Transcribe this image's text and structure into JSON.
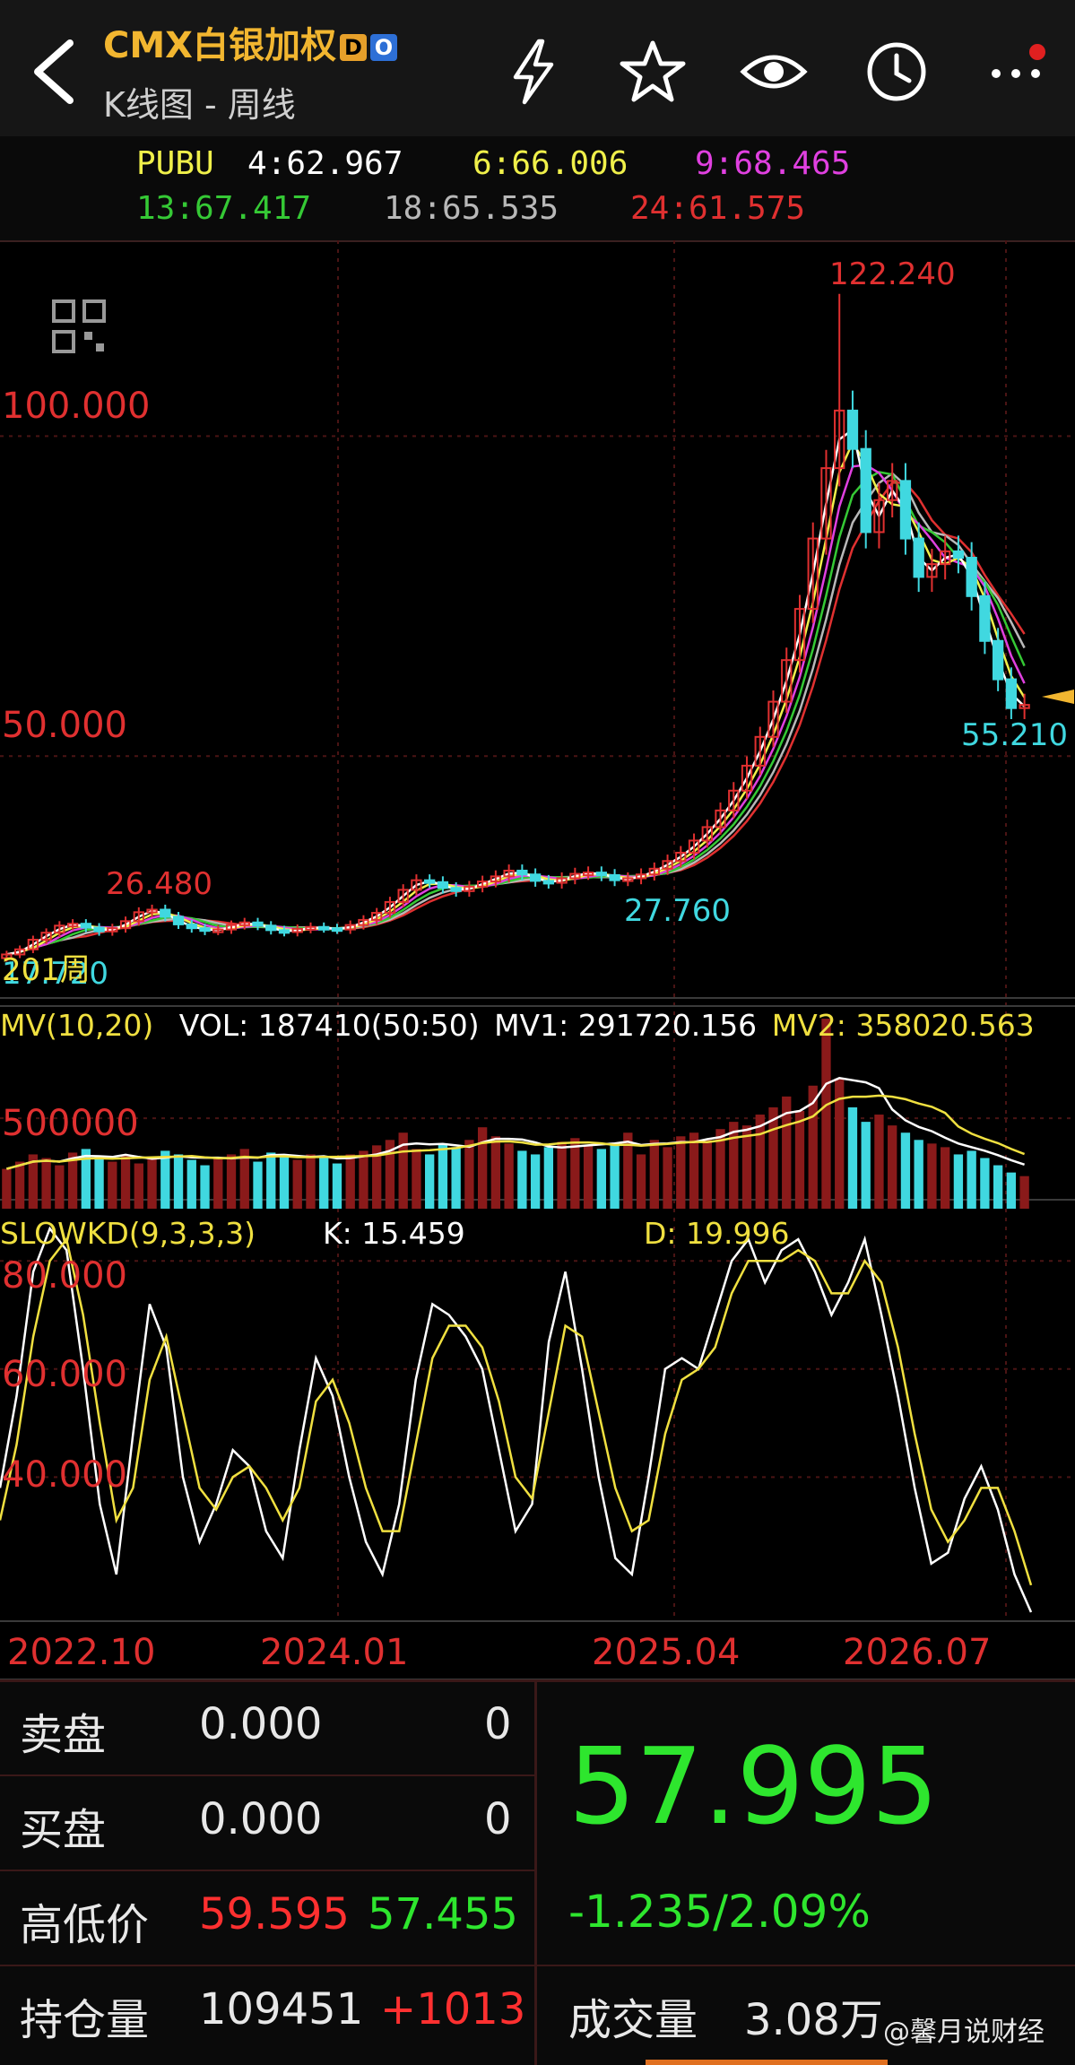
{
  "header": {
    "title": "CMX白银加权",
    "badges": [
      "D",
      "O"
    ],
    "subtitle": "K线图 - 周线",
    "icons": [
      "back-icon",
      "lightning-icon",
      "star-icon",
      "eye-icon",
      "clock-icon",
      "more-icon"
    ]
  },
  "ma_legend": {
    "row1": [
      {
        "text": "PUBU",
        "color": "#f0f04a"
      },
      {
        "text": "4:62.967",
        "color": "#ffffff"
      },
      {
        "text": "6:66.006",
        "color": "#f0f04a"
      },
      {
        "text": "9:68.465",
        "color": "#e040e0"
      }
    ],
    "row2": [
      {
        "text": "13:67.417",
        "color": "#35c935"
      },
      {
        "text": "18:65.535",
        "color": "#b8b8b8"
      },
      {
        "text": "24:61.575",
        "color": "#e03030"
      }
    ]
  },
  "price_chart": {
    "y_labels": [
      "100.000",
      "50.000"
    ],
    "annotations": {
      "high": "122.240",
      "low_recent": "55.210",
      "mid_low": "27.760",
      "left_high": "26.480",
      "left_low": "17.720",
      "period": "201周"
    }
  },
  "volume_panel": {
    "title": "MV(10,20)",
    "vol": "VOL: 187410(50:50)",
    "mv1": "MV1: 291720.156",
    "mv2": "MV2: 358020.563",
    "y_label": "500000"
  },
  "kd_panel": {
    "title": "SLOWKD(9,3,3,3)",
    "k": "K: 15.459",
    "d": "D: 19.996",
    "y_labels": [
      "80.000",
      "60.000",
      "40.000"
    ]
  },
  "x_axis": [
    "2022.10",
    "2024.01",
    "2025.04",
    "2026.07"
  ],
  "quote": {
    "sell_label": "卖盘",
    "sell_price": "0.000",
    "sell_qty": "0",
    "buy_label": "买盘",
    "buy_price": "0.000",
    "buy_qty": "0",
    "hl_label": "高低价",
    "high": "59.595",
    "low": "57.455",
    "oi_label": "持仓量",
    "oi": "109451",
    "oi_change": "+1013",
    "last": "57.995",
    "change": "-1.235/2.09%",
    "volume_label": "成交量",
    "volume": "3.08万"
  },
  "watermark": "@馨月说财经",
  "colors": {
    "up": "#e03030",
    "down": "#40d8e0",
    "green": "#2ee62e",
    "yellow": "#f0e040",
    "grid": "#5a1a1a",
    "accent": "#f2b630"
  },
  "chart_data": [
    {
      "type": "candlestick",
      "title": "CMX白银加权 K线图 - 周线",
      "x_ticks": [
        "2022.10",
        "2024.01",
        "2025.04",
        "2026.07"
      ],
      "ylim": [
        15,
        125
      ],
      "y_ticks": [
        50,
        100
      ],
      "annotations": [
        {
          "label": "122.240",
          "value": 122.24
        },
        {
          "label": "55.210",
          "value": 55.21
        },
        {
          "label": "27.760",
          "value": 27.76
        },
        {
          "label": "26.480",
          "value": 26.48
        },
        {
          "label": "17.720",
          "value": 17.72
        }
      ],
      "close_series": [
        19.0,
        19.8,
        21.3,
        22.4,
        23.5,
        23.8,
        23.2,
        22.6,
        23.1,
        24.2,
        25.6,
        26.0,
        24.9,
        23.7,
        23.1,
        22.7,
        22.9,
        23.6,
        24.0,
        23.5,
        22.8,
        22.5,
        23.0,
        23.3,
        23.1,
        22.9,
        23.6,
        24.4,
        25.5,
        27.2,
        29.1,
        30.6,
        30.3,
        29.4,
        28.9,
        29.6,
        30.4,
        31.2,
        32.1,
        31.5,
        30.5,
        30.2,
        30.9,
        31.6,
        31.8,
        31.4,
        30.6,
        30.9,
        31.5,
        32.4,
        33.6,
        34.9,
        36.8,
        38.9,
        41.5,
        44.6,
        48.5,
        53.0,
        58.5,
        65.0,
        73.0,
        84.0,
        95.0,
        104.0,
        98.0,
        85.0,
        90.0,
        93.0,
        84.0,
        78.0,
        80.0,
        82.0,
        81.0,
        75.0,
        68.0,
        62.0,
        57.5,
        58.0
      ],
      "ma_series": [
        {
          "name": "24",
          "color": "#e03030"
        },
        {
          "name": "18",
          "color": "#b8b8b8"
        },
        {
          "name": "13",
          "color": "#35c935"
        },
        {
          "name": "9",
          "color": "#e040e0"
        },
        {
          "name": "6",
          "color": "#f0f04a"
        },
        {
          "name": "4",
          "color": "#ffffff"
        }
      ]
    },
    {
      "type": "bar",
      "title": "MV(10,20)",
      "y_ticks": [
        500000
      ],
      "ylim": [
        0,
        1100000
      ],
      "values": [
        220000,
        260000,
        300000,
        280000,
        240000,
        310000,
        330000,
        290000,
        260000,
        300000,
        250000,
        280000,
        320000,
        300000,
        270000,
        240000,
        280000,
        300000,
        330000,
        260000,
        310000,
        290000,
        270000,
        300000,
        280000,
        250000,
        300000,
        320000,
        350000,
        380000,
        420000,
        330000,
        300000,
        360000,
        340000,
        380000,
        450000,
        400000,
        360000,
        320000,
        300000,
        340000,
        370000,
        390000,
        350000,
        330000,
        360000,
        420000,
        300000,
        380000,
        340000,
        400000,
        420000,
        380000,
        440000,
        480000,
        460000,
        520000,
        560000,
        620000,
        540000,
        680000,
        1050000,
        720000,
        560000,
        480000,
        520000,
        460000,
        420000,
        380000,
        360000,
        340000,
        300000,
        320000,
        280000,
        240000,
        200000,
        180000
      ],
      "series": [
        {
          "name": "MV1",
          "value": 291720.156,
          "color": "#ffffff"
        },
        {
          "name": "MV2",
          "value": 358020.563,
          "color": "#f0e040"
        }
      ]
    },
    {
      "type": "line",
      "title": "SLOWKD(9,3,3,3)",
      "y_ticks": [
        80,
        60,
        40
      ],
      "ylim": [
        15,
        88
      ],
      "series": [
        {
          "name": "K",
          "color": "#ffffff",
          "values": [
            38,
            55,
            78,
            86,
            82,
            60,
            35,
            22,
            48,
            72,
            64,
            40,
            28,
            35,
            45,
            42,
            30,
            25,
            45,
            62,
            55,
            40,
            28,
            22,
            35,
            58,
            72,
            70,
            66,
            60,
            45,
            30,
            35,
            65,
            78,
            60,
            40,
            25,
            22,
            40,
            60,
            62,
            60,
            70,
            80,
            84,
            76,
            82,
            84,
            78,
            70,
            76,
            84,
            70,
            55,
            38,
            24,
            26,
            36,
            42,
            34,
            22,
            15
          ]
        },
        {
          "name": "D",
          "color": "#f0e040",
          "values": [
            32,
            46,
            66,
            80,
            84,
            70,
            50,
            32,
            38,
            58,
            66,
            52,
            38,
            34,
            40,
            42,
            38,
            32,
            38,
            54,
            58,
            50,
            38,
            30,
            30,
            46,
            62,
            68,
            68,
            64,
            54,
            40,
            36,
            52,
            68,
            66,
            52,
            38,
            30,
            32,
            48,
            58,
            60,
            64,
            74,
            80,
            80,
            80,
            82,
            80,
            74,
            74,
            80,
            76,
            64,
            48,
            34,
            28,
            32,
            38,
            38,
            30,
            20
          ]
        }
      ]
    }
  ]
}
